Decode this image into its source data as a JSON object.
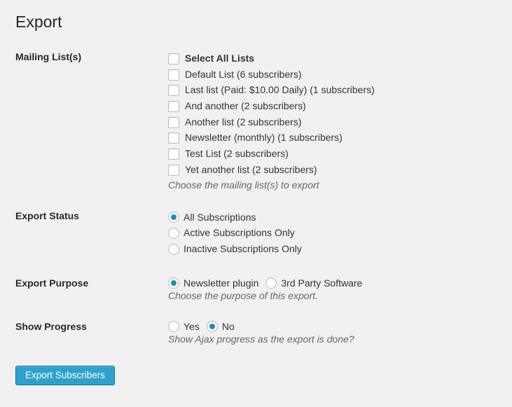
{
  "page": {
    "title": "Export"
  },
  "sections": {
    "mailing_lists": {
      "label": "Mailing List(s)",
      "select_all": "Select All Lists",
      "items": [
        "Default List (6 subscribers)",
        "Last list (Paid: $10.00 Daily) (1 subscribers)",
        "And another (2 subscribers)",
        "Another list (2 subscribers)",
        "Newsletter (monthly) (1 subscribers)",
        "Test List (2 subscribers)",
        "Yet another list (2 subscribers)"
      ],
      "hint": "Choose the mailing list(s) to export"
    },
    "export_status": {
      "label": "Export Status",
      "options": [
        "All Subscriptions",
        "Active Subscriptions Only",
        "Inactive Subscriptions Only"
      ],
      "selected": 0
    },
    "export_purpose": {
      "label": "Export Purpose",
      "options": [
        "Newsletter plugin",
        "3rd Party Software"
      ],
      "selected": 0,
      "hint": "Choose the purpose of this export."
    },
    "show_progress": {
      "label": "Show Progress",
      "options": [
        "Yes",
        "No"
      ],
      "selected": 1,
      "hint": "Show Ajax progress as the export is done?"
    }
  },
  "submit": {
    "label": "Export Subscribers"
  },
  "colors": {
    "background": "#f1f1f1",
    "text": "#333",
    "label": "#23282d",
    "hint": "#666",
    "button_bg": "#2ea2cc",
    "button_border": "#0074a2",
    "radio_dot": "#1e8cbe",
    "control_border": "#bbb"
  }
}
